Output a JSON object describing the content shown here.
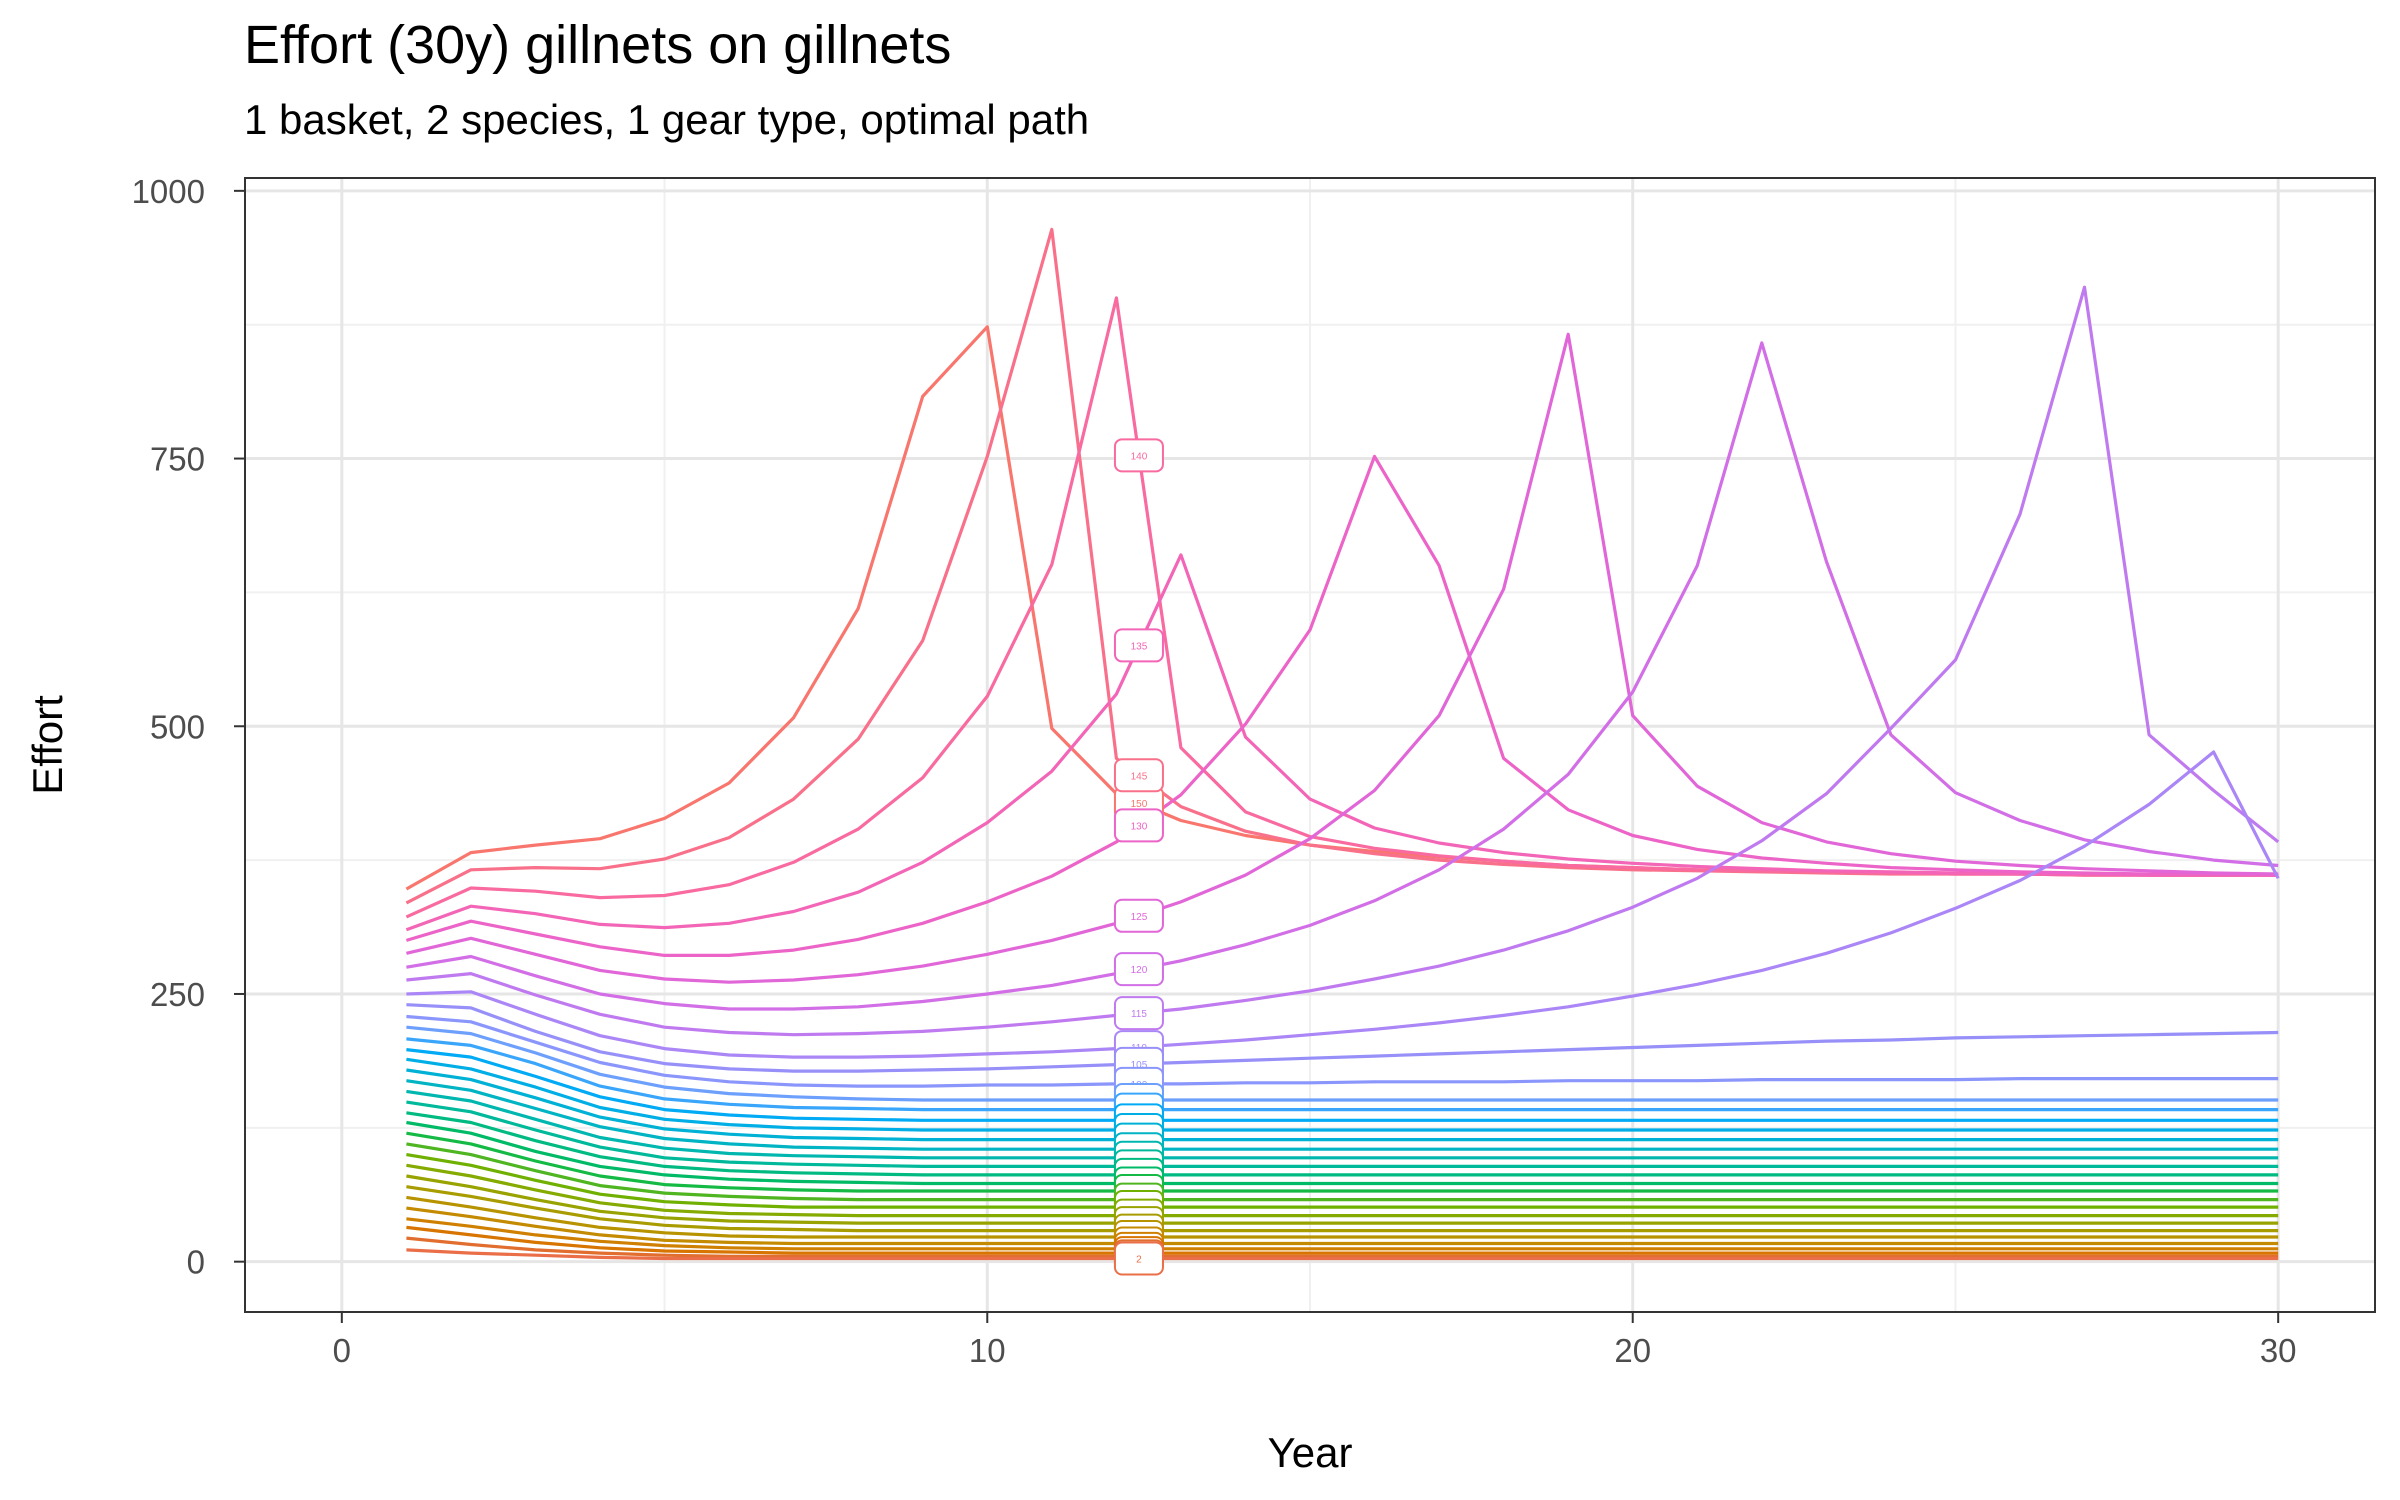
{
  "chart_data": {
    "type": "line",
    "title": "Effort (30y) gillnets on gillnets",
    "subtitle": "1 basket, 2 species, 1 gear type, optimal path",
    "xlabel": "Year",
    "ylabel": "Effort",
    "xlim": [
      -1.5,
      31.5
    ],
    "ylim": [
      -47,
      1012
    ],
    "xticks": [
      0,
      10,
      20,
      30
    ],
    "yticks": [
      0,
      250,
      500,
      750,
      1000
    ],
    "grid": true,
    "legend": "none",
    "label_year": 12.35,
    "x": [
      1,
      2,
      3,
      4,
      5,
      6,
      7,
      8,
      9,
      10,
      11,
      12,
      13,
      14,
      15,
      16,
      17,
      18,
      19,
      20,
      21,
      22,
      23,
      24,
      25,
      26,
      27,
      28,
      29,
      30
    ],
    "series": [
      {
        "label": "150",
        "color": "#f8766d",
        "values": [
          348,
          382,
          389,
          395,
          414,
          447,
          508,
          610,
          808,
          873,
          498,
          437,
          412,
          398,
          389,
          383,
          378,
          374,
          370,
          368,
          366,
          365,
          364,
          363,
          362,
          362,
          362,
          361,
          361,
          361
        ]
      },
      {
        "label": "145",
        "color": "#f9708a",
        "values": [
          335,
          366,
          368,
          367,
          376,
          396,
          432,
          488,
          580,
          752,
          964,
          470,
          425,
          402,
          389,
          381,
          375,
          371,
          368,
          366,
          365,
          364,
          363,
          362,
          362,
          362,
          361,
          361,
          361,
          361
        ]
      },
      {
        "label": "140",
        "color": "#f86aa0",
        "values": [
          322,
          349,
          346,
          340,
          342,
          352,
          373,
          404,
          452,
          528,
          651,
          900,
          480,
          420,
          397,
          386,
          379,
          374,
          370,
          368,
          366,
          365,
          364,
          363,
          362,
          362,
          361,
          361,
          361,
          361
        ]
      },
      {
        "label": "135",
        "color": "#f365b6",
        "values": [
          310,
          332,
          325,
          315,
          312,
          316,
          327,
          345,
          373,
          410,
          458,
          530,
          660,
          490,
          432,
          405,
          391,
          382,
          376,
          372,
          369,
          367,
          365,
          364,
          363,
          362,
          362,
          361,
          361,
          361
        ]
      },
      {
        "label": "130",
        "color": "#ec64c8",
        "values": [
          300,
          318,
          306,
          294,
          286,
          286,
          291,
          301,
          316,
          336,
          360,
          392,
          436,
          502,
          590,
          752,
          650,
          470,
          422,
          398,
          385,
          377,
          372,
          368,
          366,
          364,
          363,
          362,
          362,
          361
        ]
      },
      {
        "label": "125",
        "color": "#e166d8",
        "values": [
          288,
          302,
          287,
          272,
          264,
          261,
          263,
          268,
          276,
          287,
          300,
          316,
          336,
          361,
          395,
          440,
          510,
          628,
          866,
          510,
          444,
          410,
          392,
          381,
          374,
          370,
          367,
          365,
          363,
          362
        ]
      },
      {
        "label": "120",
        "color": "#d26ee6",
        "values": [
          275,
          285,
          267,
          250,
          241,
          236,
          236,
          238,
          243,
          250,
          258,
          269,
          281,
          296,
          314,
          337,
          366,
          404,
          455,
          532,
          650,
          858,
          654,
          492,
          438,
          412,
          394,
          383,
          375,
          370
        ]
      },
      {
        "label": "115",
        "color": "#c07af0",
        "values": [
          263,
          269,
          249,
          231,
          219,
          214,
          212,
          213,
          215,
          219,
          224,
          230,
          236,
          244,
          253,
          264,
          276,
          291,
          309,
          331,
          358,
          393,
          437,
          498,
          562,
          698,
          910,
          492,
          440,
          392
        ]
      },
      {
        "label": "110",
        "color": "#aa86f6",
        "values": [
          250,
          252,
          231,
          211,
          199,
          193,
          191,
          191,
          192,
          194,
          196,
          199,
          203,
          207,
          212,
          217,
          223,
          230,
          238,
          248,
          259,
          272,
          288,
          307,
          330,
          356,
          388,
          427,
          476,
          358
        ]
      },
      {
        "label": "105",
        "color": "#9790f9",
        "values": [
          240,
          237,
          215,
          196,
          185,
          180,
          178,
          178,
          179,
          180,
          182,
          184,
          186,
          188,
          190,
          192,
          194,
          196,
          198,
          200,
          202,
          204,
          206,
          207,
          209,
          210,
          211,
          212,
          213,
          214
        ]
      },
      {
        "label": "100",
        "color": "#8a96fb",
        "values": [
          229,
          224,
          205,
          186,
          174,
          168,
          165,
          164,
          164,
          165,
          165,
          166,
          166,
          167,
          167,
          168,
          168,
          168,
          169,
          169,
          169,
          170,
          170,
          170,
          170,
          171,
          171,
          171,
          171,
          171
        ]
      },
      {
        "label": "95",
        "color": "#6d9ffc",
        "values": [
          219,
          213,
          195,
          175,
          163,
          157,
          154,
          152,
          151,
          151,
          151,
          151,
          151,
          151,
          151,
          151,
          151,
          151,
          151,
          151,
          151,
          151,
          151,
          151,
          151,
          151,
          151,
          151,
          151,
          151
        ]
      },
      {
        "label": "90",
        "color": "#3aa6fb",
        "values": [
          208,
          202,
          185,
          164,
          152,
          147,
          144,
          143,
          142,
          142,
          142,
          142,
          142,
          142,
          142,
          142,
          142,
          142,
          142,
          142,
          142,
          142,
          142,
          142,
          142,
          142,
          142,
          142,
          142,
          142
        ]
      },
      {
        "label": "85",
        "color": "#00aaf5",
        "values": [
          198,
          191,
          173,
          154,
          142,
          137,
          134,
          133,
          132,
          132,
          132,
          132,
          132,
          132,
          132,
          132,
          132,
          132,
          132,
          132,
          132,
          132,
          132,
          132,
          132,
          132,
          132,
          132,
          132,
          132
        ]
      },
      {
        "label": "80",
        "color": "#00aee6",
        "values": [
          189,
          180,
          163,
          144,
          133,
          128,
          125,
          124,
          123,
          123,
          123,
          123,
          123,
          123,
          123,
          123,
          123,
          123,
          123,
          123,
          123,
          123,
          123,
          123,
          123,
          123,
          123,
          123,
          123,
          123
        ]
      },
      {
        "label": "75",
        "color": "#00b1d6",
        "values": [
          179,
          170,
          153,
          135,
          124,
          119,
          116,
          115,
          114,
          114,
          114,
          114,
          114,
          114,
          114,
          114,
          114,
          114,
          114,
          114,
          114,
          114,
          114,
          114,
          114,
          114,
          114,
          114,
          114,
          114
        ]
      },
      {
        "label": "70",
        "color": "#00b4c4",
        "values": [
          169,
          160,
          143,
          126,
          115,
          110,
          107,
          106,
          105,
          105,
          105,
          105,
          105,
          105,
          105,
          105,
          105,
          105,
          105,
          105,
          105,
          105,
          105,
          105,
          105,
          105,
          105,
          105,
          105,
          105
        ]
      },
      {
        "label": "65",
        "color": "#00b7b0",
        "values": [
          159,
          150,
          133,
          116,
          106,
          101,
          99,
          98,
          97,
          97,
          97,
          97,
          97,
          97,
          97,
          97,
          97,
          97,
          97,
          97,
          97,
          97,
          97,
          97,
          97,
          97,
          97,
          97,
          97,
          97
        ]
      },
      {
        "label": "60",
        "color": "#00b99a",
        "values": [
          149,
          140,
          123,
          107,
          97,
          93,
          91,
          90,
          89,
          89,
          89,
          89,
          89,
          89,
          89,
          89,
          89,
          89,
          89,
          89,
          89,
          89,
          89,
          89,
          89,
          89,
          89,
          89,
          89,
          89
        ]
      },
      {
        "label": "55",
        "color": "#00ba82",
        "values": [
          139,
          130,
          113,
          98,
          89,
          85,
          83,
          82,
          81,
          81,
          81,
          81,
          81,
          81,
          81,
          81,
          81,
          81,
          81,
          81,
          81,
          81,
          81,
          81,
          81,
          81,
          81,
          81,
          81,
          81
        ]
      },
      {
        "label": "50",
        "color": "#00ba66",
        "values": [
          130,
          120,
          103,
          89,
          81,
          77,
          75,
          74,
          73,
          73,
          73,
          73,
          73,
          73,
          73,
          73,
          73,
          73,
          73,
          73,
          73,
          73,
          73,
          73,
          73,
          73,
          73,
          73,
          73,
          73
        ]
      },
      {
        "label": "45",
        "color": "#15ba45",
        "values": [
          120,
          110,
          94,
          80,
          72,
          69,
          67,
          66,
          66,
          66,
          66,
          66,
          66,
          66,
          66,
          66,
          66,
          66,
          66,
          66,
          66,
          66,
          66,
          66,
          66,
          66,
          66,
          66,
          66,
          66
        ]
      },
      {
        "label": "40",
        "color": "#4fb521",
        "values": [
          110,
          100,
          85,
          71,
          64,
          61,
          59,
          58,
          58,
          58,
          58,
          58,
          58,
          58,
          58,
          58,
          58,
          58,
          58,
          58,
          58,
          58,
          58,
          58,
          58,
          58,
          58,
          58,
          58,
          58
        ]
      },
      {
        "label": "35",
        "color": "#6fb000",
        "values": [
          100,
          90,
          76,
          63,
          56,
          53,
          51,
          51,
          51,
          51,
          51,
          51,
          51,
          51,
          51,
          51,
          51,
          51,
          51,
          51,
          51,
          51,
          51,
          51,
          51,
          51,
          51,
          51,
          51,
          51
        ]
      },
      {
        "label": "30",
        "color": "#85aa00",
        "values": [
          90,
          80,
          67,
          55,
          48,
          45,
          44,
          43,
          43,
          43,
          43,
          43,
          43,
          43,
          43,
          43,
          43,
          43,
          43,
          43,
          43,
          43,
          43,
          43,
          43,
          43,
          43,
          43,
          43,
          43
        ]
      },
      {
        "label": "25",
        "color": "#99a300",
        "values": [
          80,
          70,
          58,
          47,
          41,
          38,
          37,
          36,
          36,
          36,
          36,
          36,
          36,
          36,
          36,
          36,
          36,
          36,
          36,
          36,
          36,
          36,
          36,
          36,
          36,
          36,
          36,
          36,
          36,
          36
        ]
      },
      {
        "label": "20",
        "color": "#a99c00",
        "values": [
          70,
          61,
          50,
          40,
          34,
          31,
          30,
          29,
          29,
          29,
          29,
          29,
          29,
          29,
          29,
          29,
          29,
          29,
          29,
          29,
          29,
          29,
          29,
          29,
          29,
          29,
          29,
          29,
          29,
          29
        ]
      },
      {
        "label": "15",
        "color": "#b89300",
        "values": [
          60,
          51,
          41,
          32,
          27,
          24,
          23,
          23,
          23,
          23,
          23,
          23,
          23,
          23,
          23,
          23,
          23,
          23,
          23,
          23,
          23,
          23,
          23,
          23,
          23,
          23,
          23,
          23,
          23,
          23
        ]
      },
      {
        "label": "10",
        "color": "#c48a00",
        "values": [
          50,
          42,
          33,
          25,
          20,
          18,
          17,
          17,
          17,
          17,
          17,
          17,
          17,
          17,
          17,
          17,
          17,
          17,
          17,
          17,
          17,
          17,
          17,
          17,
          17,
          17,
          17,
          17,
          17,
          17
        ]
      },
      {
        "label": "5",
        "color": "#cf8000",
        "values": [
          40,
          33,
          25,
          19,
          15,
          13,
          12,
          12,
          12,
          12,
          12,
          12,
          12,
          12,
          12,
          12,
          12,
          12,
          12,
          12,
          12,
          12,
          12,
          12,
          12,
          12,
          12,
          12,
          12,
          12
        ]
      },
      {
        "label": "4",
        "color": "#d87500",
        "values": [
          32,
          25,
          18,
          13,
          10,
          9,
          8,
          8,
          8,
          8,
          8,
          8,
          8,
          8,
          8,
          8,
          8,
          8,
          8,
          8,
          8,
          8,
          8,
          8,
          8,
          8,
          8,
          8,
          8,
          8
        ]
      },
      {
        "label": "3",
        "color": "#e16d2e",
        "values": [
          22,
          16,
          11,
          8,
          6,
          5,
          5,
          5,
          5,
          5,
          5,
          5,
          5,
          5,
          5,
          5,
          5,
          5,
          5,
          5,
          5,
          5,
          5,
          5,
          5,
          5,
          5,
          5,
          5,
          5
        ]
      },
      {
        "label": "2",
        "color": "#ea6f49",
        "values": [
          11,
          8,
          6,
          4,
          3,
          3,
          3,
          3,
          3,
          3,
          3,
          3,
          3,
          3,
          3,
          3,
          3,
          3,
          3,
          3,
          3,
          3,
          3,
          3,
          3,
          3,
          3,
          3,
          3,
          3
        ]
      }
    ]
  }
}
